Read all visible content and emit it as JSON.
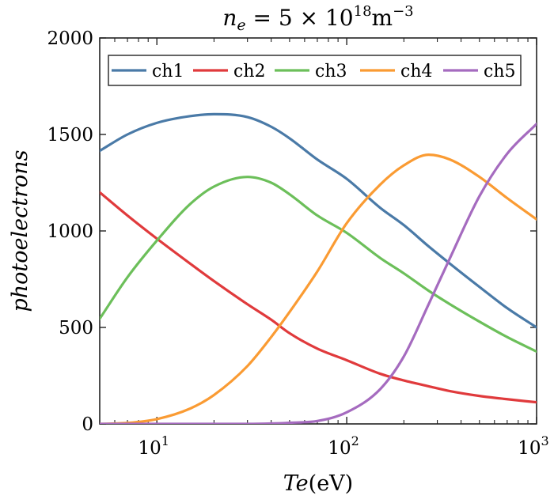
{
  "chart_data": {
    "type": "line",
    "title": {
      "prefix": "n",
      "sub": "e",
      "middle": " = 5 × 10",
      "exp": "18",
      "unit": "m",
      "unit_exp": "−3"
    },
    "xlabel": {
      "main": "Te",
      "unit": "(eV)"
    },
    "ylabel": "photoelectrons",
    "x_scale": "log",
    "xlim": [
      5,
      1000
    ],
    "ylim": [
      0,
      2000
    ],
    "x_ticks": [
      {
        "value": 10,
        "base": "10",
        "exp": "1"
      },
      {
        "value": 100,
        "base": "10",
        "exp": "2"
      },
      {
        "value": 1000,
        "base": "10",
        "exp": "3"
      }
    ],
    "y_ticks": [
      {
        "value": 0,
        "label": "0"
      },
      {
        "value": 500,
        "label": "500"
      },
      {
        "value": 1000,
        "label": "1000"
      },
      {
        "value": 1500,
        "label": "1500"
      },
      {
        "value": 2000,
        "label": "2000"
      }
    ],
    "grid": false,
    "legend_position": "top",
    "x": [
      5,
      7,
      10,
      15,
      20,
      30,
      40,
      50,
      70,
      100,
      150,
      200,
      270,
      350,
      500,
      700,
      1000
    ],
    "series": [
      {
        "name": "ch1",
        "color": "#4a7aa7",
        "values": [
          1415,
          1500,
          1560,
          1595,
          1605,
          1590,
          1540,
          1480,
          1370,
          1270,
          1120,
          1030,
          920,
          830,
          710,
          600,
          500
        ]
      },
      {
        "name": "ch2",
        "color": "#e03a3c",
        "values": [
          1200,
          1080,
          960,
          830,
          740,
          620,
          540,
          470,
          390,
          330,
          260,
          225,
          195,
          170,
          145,
          128,
          112
        ]
      },
      {
        "name": "ch3",
        "color": "#6cbf5a",
        "values": [
          545,
          760,
          950,
          1140,
          1230,
          1280,
          1250,
          1190,
          1080,
          990,
          860,
          780,
          690,
          620,
          530,
          450,
          375
        ]
      },
      {
        "name": "ch4",
        "color": "#fa9b33",
        "values": [
          0,
          5,
          25,
          80,
          150,
          300,
          450,
          580,
          790,
          1040,
          1240,
          1340,
          1395,
          1370,
          1280,
          1170,
          1060
        ]
      },
      {
        "name": "ch5",
        "color": "#a56bbf",
        "values": [
          0,
          0,
          0,
          0,
          0,
          0,
          2,
          6,
          15,
          60,
          180,
          350,
          620,
          860,
          1180,
          1400,
          1555
        ]
      }
    ]
  }
}
